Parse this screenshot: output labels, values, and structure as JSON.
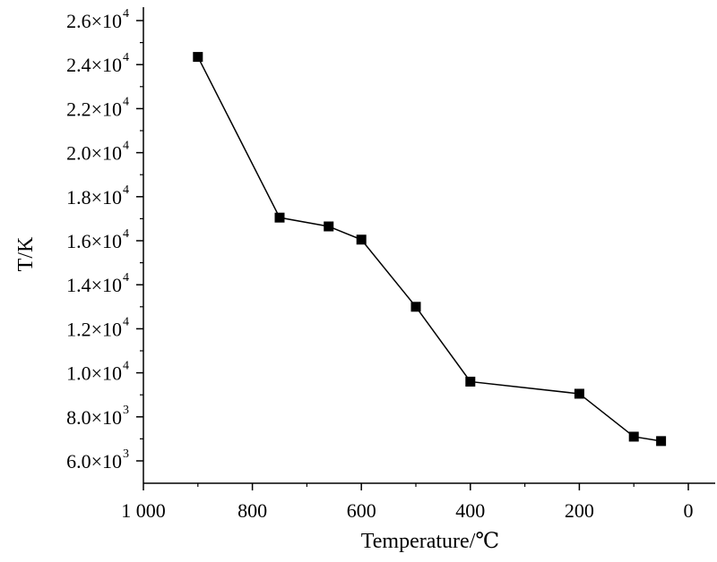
{
  "chart_data": {
    "type": "line",
    "xlabel": "Temperature/℃",
    "ylabel": "T/K",
    "xlim": [
      1000,
      0
    ],
    "ylim": [
      5000,
      26000
    ],
    "x_ticks": [
      {
        "value": 1000,
        "label": "1 000"
      },
      {
        "value": 800,
        "label": "800"
      },
      {
        "value": 600,
        "label": "600"
      },
      {
        "value": 400,
        "label": "400"
      },
      {
        "value": 200,
        "label": "200"
      },
      {
        "value": 0,
        "label": "0"
      }
    ],
    "y_ticks": [
      {
        "value": 6000,
        "mantissa": "6.0×10",
        "exp": "3"
      },
      {
        "value": 8000,
        "mantissa": "8.0×10",
        "exp": "3"
      },
      {
        "value": 10000,
        "mantissa": "1.0×10",
        "exp": "4"
      },
      {
        "value": 12000,
        "mantissa": "1.2×10",
        "exp": "4"
      },
      {
        "value": 14000,
        "mantissa": "1.4×10",
        "exp": "4"
      },
      {
        "value": 16000,
        "mantissa": "1.6×10",
        "exp": "4"
      },
      {
        "value": 18000,
        "mantissa": "1.8×10",
        "exp": "4"
      },
      {
        "value": 20000,
        "mantissa": "2.0×10",
        "exp": "4"
      },
      {
        "value": 22000,
        "mantissa": "2.2×10",
        "exp": "4"
      },
      {
        "value": 24000,
        "mantissa": "2.4×10",
        "exp": "4"
      },
      {
        "value": 26000,
        "mantissa": "2.6×10",
        "exp": "4"
      }
    ],
    "series": [
      {
        "x": [
          900,
          750,
          660,
          600,
          500,
          400,
          200,
          100,
          50
        ],
        "y": [
          24350,
          17050,
          16650,
          16050,
          13000,
          9600,
          9050,
          7100,
          6900
        ],
        "marker": "square",
        "color": "#000000"
      }
    ],
    "grid": false
  }
}
